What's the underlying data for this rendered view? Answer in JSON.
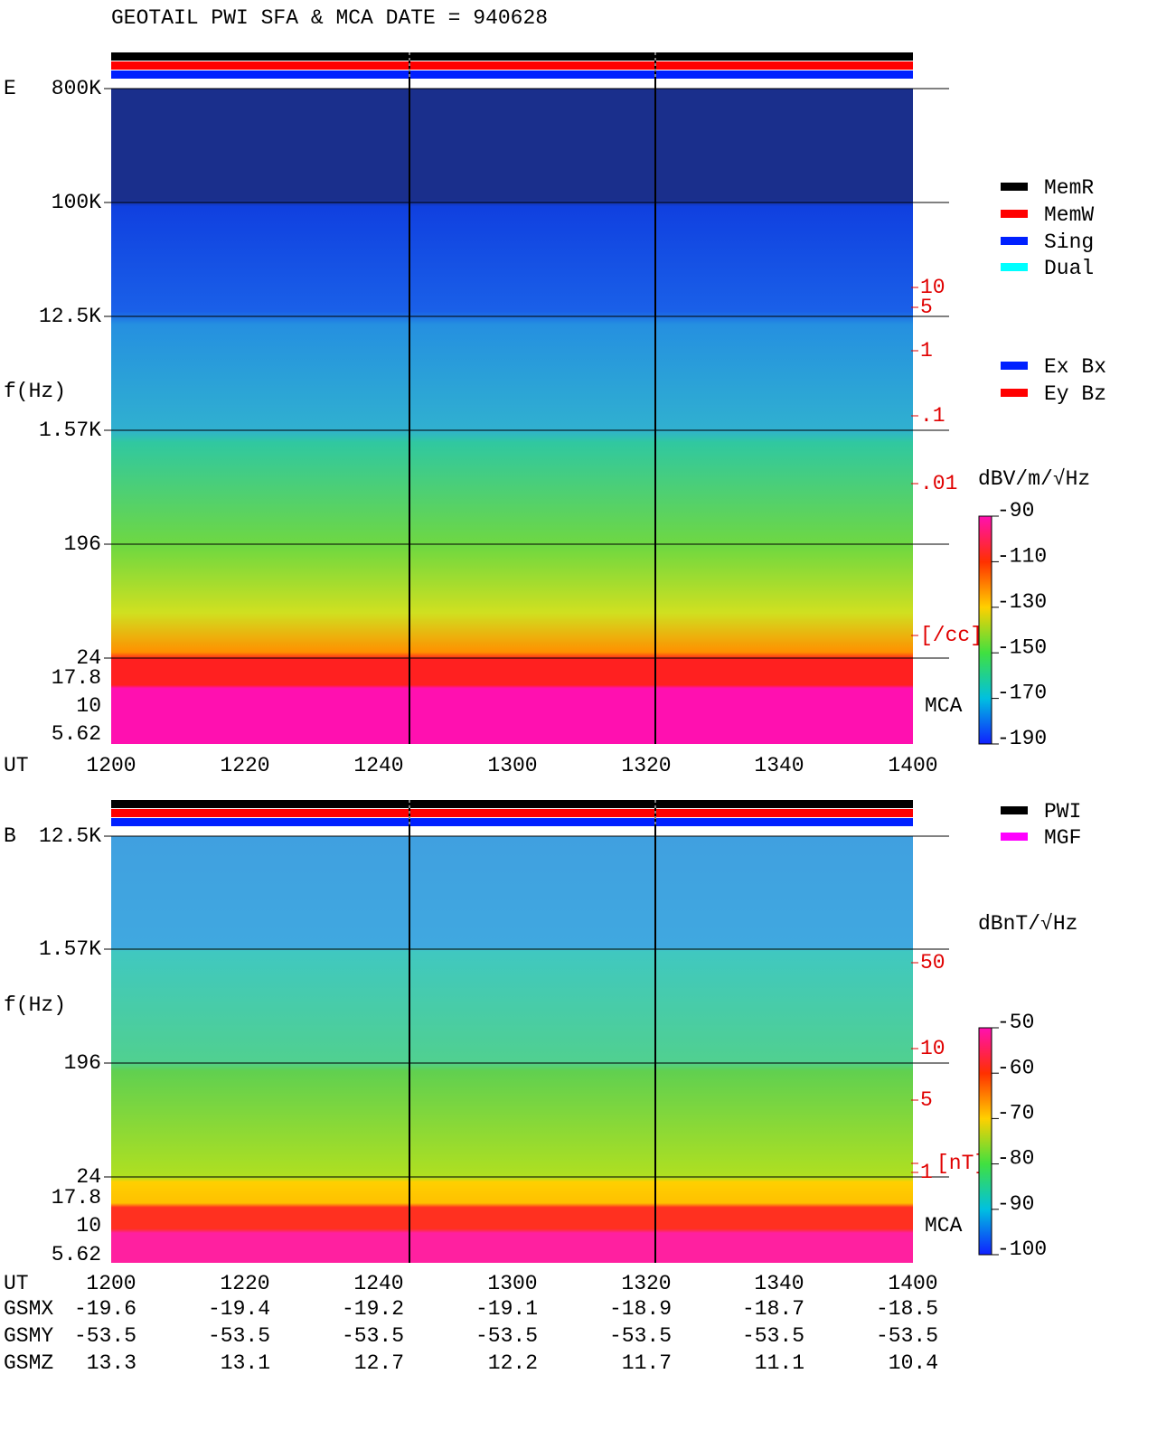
{
  "title": "GEOTAIL  PWI SFA & MCA  DATE = 940628",
  "panels": [
    {
      "component": "E",
      "yticks": [
        "800K",
        "100K",
        "12.5K",
        "1.57K",
        "196",
        "24",
        "17.8",
        "10",
        "5.62"
      ],
      "ylabel": "f(Hz)",
      "xlabel": "UT",
      "xticks": [
        "1200",
        "1220",
        "1240",
        "1300",
        "1320",
        "1340",
        "1400"
      ],
      "right_scale": [
        "10",
        "5",
        "1",
        ".1",
        ".01",
        "[/cc]"
      ],
      "mca": "MCA",
      "colorbar_unit": "dBV/m/√Hz",
      "colorbar_ticks": [
        "-90",
        "-110",
        "-130",
        "-150",
        "-170",
        "-190"
      ]
    },
    {
      "component": "B",
      "yticks": [
        "12.5K",
        "1.57K",
        "196",
        "24",
        "17.8",
        "10",
        "5.62"
      ],
      "ylabel": "f(Hz)",
      "xlabel": "UT",
      "xticks": [
        "1200",
        "1220",
        "1240",
        "1300",
        "1320",
        "1340",
        "1400"
      ],
      "right_scale": [
        "50",
        "10",
        "5",
        "1",
        "[nT]"
      ],
      "mca": "MCA",
      "colorbar_unit": "dBnT/√Hz",
      "colorbar_ticks": [
        "-50",
        "-60",
        "-70",
        "-80",
        "-90",
        "-100"
      ]
    }
  ],
  "legend_mode": [
    {
      "name": "MemR",
      "color": "#000000"
    },
    {
      "name": "MemW",
      "color": "#ff0000"
    },
    {
      "name": "Sing",
      "color": "#0020ff"
    },
    {
      "name": "Dual",
      "color": "#00ffff"
    }
  ],
  "legend_antenna": [
    {
      "name": "Ex Bx",
      "color": "#0020ff"
    },
    {
      "name": "Ey Bz",
      "color": "#ff0000"
    }
  ],
  "legend_source": [
    {
      "name": "PWI",
      "color": "#000000"
    },
    {
      "name": "MGF",
      "color": "#ff00ff"
    }
  ],
  "orbit": [
    {
      "label": "GSMX",
      "values": [
        "-19.6",
        "-19.4",
        "-19.2",
        "-19.1",
        "-18.9",
        "-18.7",
        "-18.5"
      ]
    },
    {
      "label": "GSMY",
      "values": [
        "-53.5",
        "-53.5",
        "-53.5",
        "-53.5",
        "-53.5",
        "-53.5",
        "-53.5"
      ]
    },
    {
      "label": "GSMZ",
      "values": [
        "13.3",
        "13.1",
        "12.7",
        "12.2",
        "11.7",
        "11.1",
        "10.4"
      ]
    }
  ]
}
